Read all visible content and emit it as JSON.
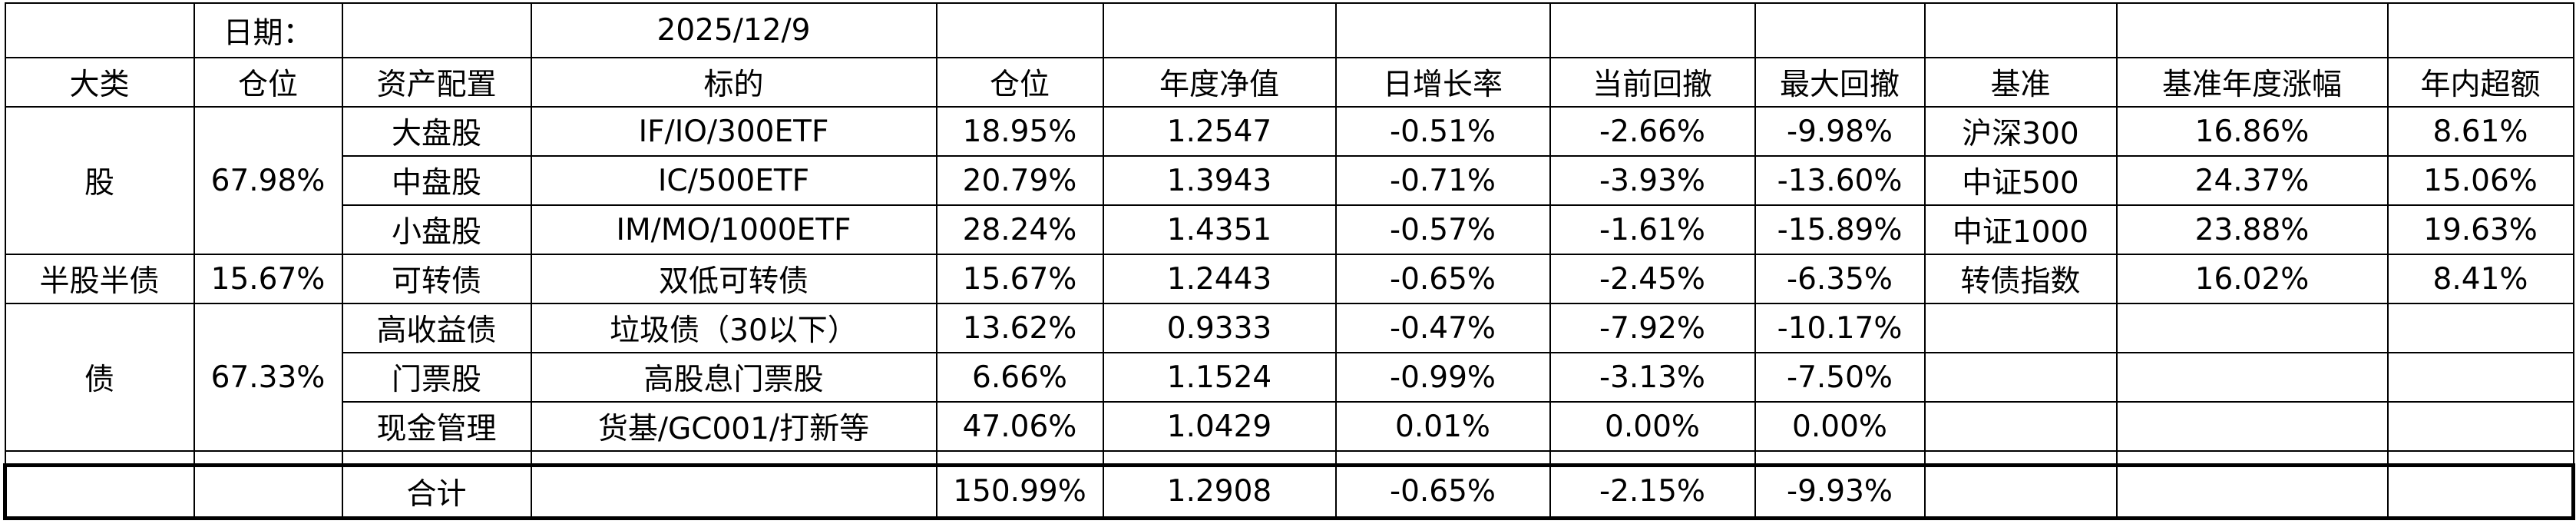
{
  "table": {
    "date_label": "日期：",
    "date": "2025/12/9",
    "header": [
      "大类",
      "仓位",
      "资产配置",
      "标的",
      "仓位",
      "年度净值",
      "日增长率",
      "当前回撤",
      "最大回撤",
      "基准",
      "基准年度涨幅",
      "年内超额"
    ],
    "groups": [
      {
        "category": "股",
        "position": "67.98%",
        "rows": [
          {
            "asset": "大盘股",
            "target": "IF/IO/300ETF",
            "position": "18.95%",
            "nav": "1.2547",
            "daily": "-0.51%",
            "drawdown": "-2.66%",
            "max_drawdown": "-9.98%",
            "benchmark": "沪深300",
            "benchmark_return": "16.86%",
            "excess": "8.61%"
          },
          {
            "asset": "中盘股",
            "target": "IC/500ETF",
            "position": "20.79%",
            "nav": "1.3943",
            "daily": "-0.71%",
            "drawdown": "-3.93%",
            "max_drawdown": "-13.60%",
            "benchmark": "中证500",
            "benchmark_return": "24.37%",
            "excess": "15.06%"
          },
          {
            "asset": "小盘股",
            "target": "IM/MO/1000ETF",
            "position": "28.24%",
            "nav": "1.4351",
            "daily": "-0.57%",
            "drawdown": "-1.61%",
            "max_drawdown": "-15.89%",
            "benchmark": "中证1000",
            "benchmark_return": "23.88%",
            "excess": "19.63%"
          }
        ]
      },
      {
        "category": "半股半债",
        "position": "15.67%",
        "rows": [
          {
            "asset": "可转债",
            "target": "双低可转债",
            "position": "15.67%",
            "nav": "1.2443",
            "daily": "-0.65%",
            "drawdown": "-2.45%",
            "max_drawdown": "-6.35%",
            "benchmark": "转债指数",
            "benchmark_return": "16.02%",
            "excess": "8.41%"
          }
        ]
      },
      {
        "category": "债",
        "position": "67.33%",
        "rows": [
          {
            "asset": "高收益债",
            "target": "垃圾债（30以下）",
            "position": "13.62%",
            "nav": "0.9333",
            "daily": "-0.47%",
            "drawdown": "-7.92%",
            "max_drawdown": "-10.17%"
          },
          {
            "asset": "门票股",
            "target": "高股息门票股",
            "position": "6.66%",
            "nav": "1.1524",
            "daily": "-0.99%",
            "drawdown": "-3.13%",
            "max_drawdown": "-7.50%"
          },
          {
            "asset": "现金管理",
            "target": "货基/GC001/打新等",
            "position": "47.06%",
            "nav": "1.0429",
            "daily": "0.01%",
            "drawdown": "0.00%",
            "max_drawdown": "0.00%"
          }
        ]
      }
    ],
    "total": {
      "label": "合计",
      "position": "150.99%",
      "nav": "1.2908",
      "daily": "-0.65%",
      "drawdown": "-2.15%",
      "max_drawdown": "-9.93%"
    }
  }
}
